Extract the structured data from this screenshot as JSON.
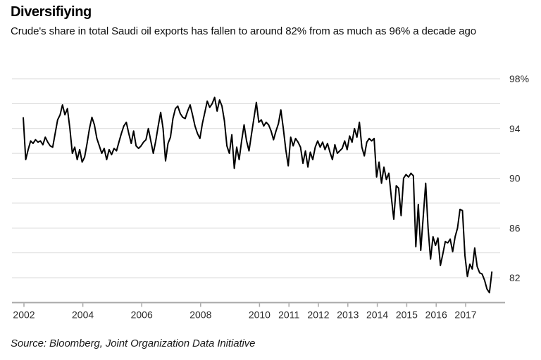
{
  "header": {
    "title": "Diversifiying",
    "subtitle": "Crude's share in total Saudi oil exports has fallen to around 82% from as much as 96% a decade ago"
  },
  "source": {
    "text": "Source: Bloomberg, Joint Organization Data Initiative"
  },
  "chart_data": {
    "type": "line",
    "title": "Diversifiying",
    "description": "Crude share of total Saudi oil exports, percent, monthly",
    "frequency": "monthly",
    "x_start_year": 2002,
    "x_end_year": 2017,
    "series": [
      {
        "name": "Crude share of total Saudi oil exports (%)",
        "values": [
          94.9,
          91.5,
          92.3,
          93.0,
          92.8,
          93.1,
          92.9,
          93.0,
          92.7,
          93.3,
          92.9,
          92.6,
          92.5,
          93.6,
          94.7,
          95.1,
          95.9,
          95.1,
          95.6,
          94.0,
          92.0,
          92.5,
          91.5,
          92.3,
          91.3,
          91.7,
          92.8,
          94.0,
          94.9,
          94.3,
          93.2,
          92.6,
          92.0,
          92.4,
          91.5,
          92.3,
          91.9,
          92.4,
          92.2,
          92.9,
          93.6,
          94.2,
          94.5,
          93.6,
          92.8,
          93.8,
          92.6,
          92.4,
          92.6,
          92.9,
          93.1,
          94.0,
          93.0,
          92.0,
          93.0,
          94.2,
          95.3,
          94.0,
          91.4,
          92.8,
          93.3,
          94.8,
          95.6,
          95.8,
          95.2,
          94.9,
          94.8,
          95.4,
          95.9,
          95.1,
          94.2,
          93.6,
          93.2,
          94.4,
          95.3,
          96.2,
          95.7,
          96.0,
          96.5,
          95.4,
          96.3,
          95.8,
          94.6,
          92.6,
          92.0,
          93.5,
          90.8,
          92.5,
          91.5,
          93.0,
          94.3,
          93.0,
          92.2,
          93.5,
          94.8,
          96.1,
          94.5,
          94.7,
          94.2,
          94.5,
          94.3,
          93.8,
          93.1,
          93.8,
          94.4,
          95.5,
          94.0,
          92.3,
          91.0,
          93.3,
          92.6,
          93.2,
          92.9,
          92.5,
          91.2,
          92.2,
          90.9,
          92.1,
          91.5,
          92.5,
          93.0,
          92.5,
          92.9,
          92.3,
          92.8,
          92.1,
          91.5,
          92.7,
          92.0,
          92.2,
          92.4,
          93.0,
          92.3,
          93.4,
          92.9,
          94.0,
          93.3,
          94.5,
          92.5,
          91.8,
          92.9,
          93.2,
          93.0,
          93.2,
          90.1,
          91.3,
          89.6,
          90.9,
          89.9,
          90.4,
          88.5,
          86.7,
          89.4,
          89.2,
          87.0,
          90.0,
          90.3,
          90.1,
          90.4,
          90.2,
          84.5,
          87.9,
          84.2,
          86.9,
          89.6,
          86.0,
          83.5,
          85.3,
          84.6,
          85.2,
          83.0,
          83.9,
          84.9,
          84.8,
          85.1,
          84.1,
          85.3,
          86.0,
          87.5,
          87.4,
          83.8,
          82.1,
          83.1,
          82.7,
          84.4,
          82.9,
          82.4,
          82.3,
          81.8,
          81.1,
          80.8,
          82.5
        ]
      }
    ],
    "x_tick_years": [
      2002,
      2004,
      2006,
      2008,
      2010,
      2011,
      2012,
      2013,
      2014,
      2015,
      2016,
      2017
    ],
    "y_axis": {
      "side": "right",
      "min": 80,
      "max": 98,
      "tick_values": [
        98,
        94,
        90,
        86,
        82
      ],
      "tick_labels": [
        "98%",
        "94",
        "90",
        "86",
        "82"
      ],
      "gridline_values": [
        98,
        96,
        94,
        92,
        90,
        88,
        86,
        84,
        82
      ]
    },
    "grid": true,
    "legend": false,
    "line_color": "#000000",
    "gridline_color": "#d9d9d9",
    "axis_color": "#a8a8a8",
    "label_color": "#2b2b2b"
  }
}
